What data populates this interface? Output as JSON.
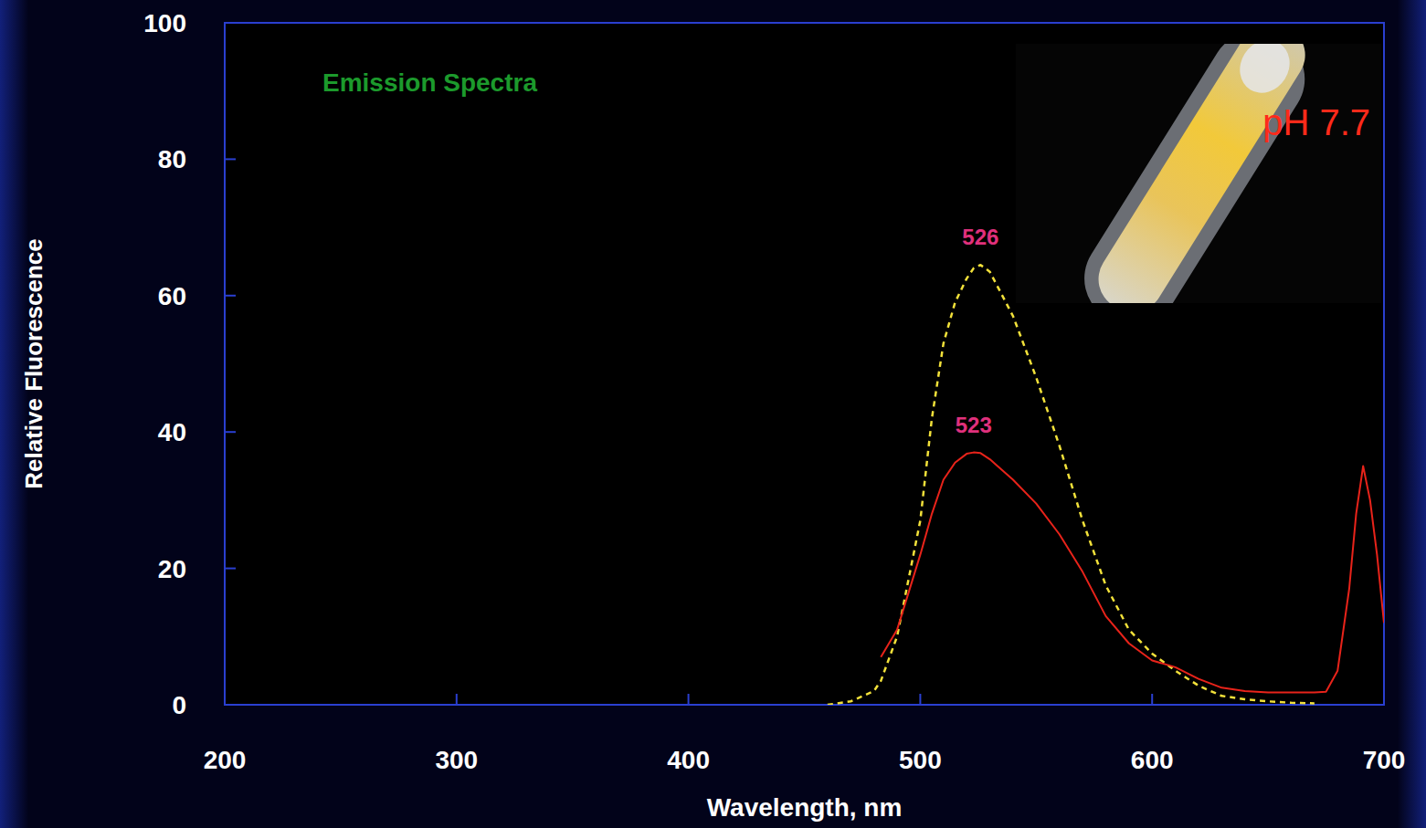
{
  "chart_data": {
    "type": "line",
    "title": "Emission Spectra",
    "x_label": "Wavelength, nm",
    "y_label": "Relative Fluorescence",
    "x": [
      460,
      470,
      480,
      483,
      490,
      500,
      505,
      510,
      515,
      520,
      523,
      526,
      530,
      540,
      550,
      560,
      570,
      580,
      590,
      600,
      610,
      620,
      630,
      640,
      650,
      660,
      670,
      675,
      680,
      685,
      688,
      691,
      694,
      697,
      700
    ],
    "series": [
      {
        "color": "#f2e13a",
        "line_style": "dashed",
        "values": [
          0,
          0.5,
          2,
          3.5,
          10,
          27,
          42,
          53,
          59,
          62.5,
          64,
          64.5,
          63.5,
          57,
          48,
          38,
          27,
          17.5,
          11,
          7.5,
          5,
          2.8,
          1.3,
          0.8,
          0.5,
          0.3,
          0.2,
          null,
          null,
          null,
          null,
          null,
          null,
          null,
          null
        ]
      },
      {
        "color": "#e8231a",
        "line_style": "solid",
        "values": [
          null,
          null,
          null,
          7,
          11,
          22,
          28,
          33,
          35.5,
          36.8,
          37,
          36.9,
          36,
          33,
          29.5,
          25,
          19.5,
          13,
          9,
          6.5,
          5.5,
          3.8,
          2.5,
          2,
          1.8,
          1.8,
          1.8,
          1.9,
          5,
          17,
          28,
          35,
          30,
          22,
          12
        ]
      }
    ],
    "xlim": [
      200,
      700
    ],
    "xticks": [
      200,
      300,
      400,
      500,
      600,
      700
    ],
    "ylim": [
      0,
      100
    ],
    "yticks": [
      0,
      20,
      40,
      60,
      80,
      100
    ],
    "grid": false,
    "annotations": [
      {
        "text": "526",
        "x": 526,
        "y": 64.5
      },
      {
        "text": "523",
        "x": 523,
        "y": 37
      },
      {
        "text": "pH 7.7"
      }
    ]
  }
}
